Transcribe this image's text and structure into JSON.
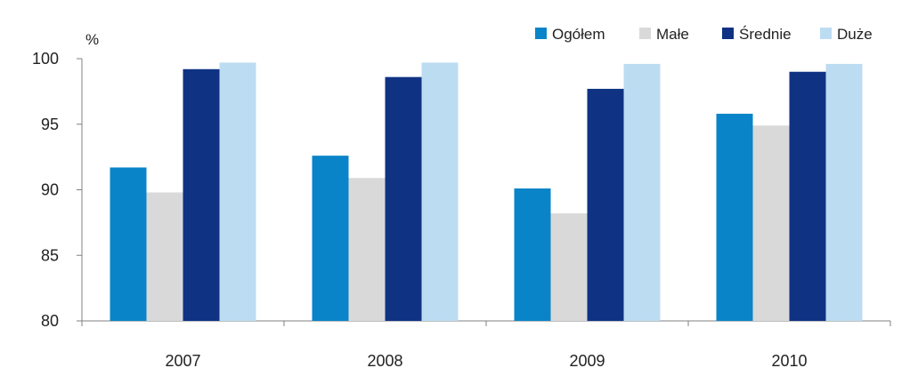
{
  "chart_data": {
    "type": "bar",
    "title": "",
    "unit_label": "%",
    "xlabel": "",
    "ylabel": "",
    "categories": [
      "2007",
      "2008",
      "2009",
      "2010"
    ],
    "series": [
      {
        "name": "Ogółem",
        "color": "#0a84c8",
        "values": [
          91.7,
          92.6,
          90.1,
          95.8
        ]
      },
      {
        "name": "Małe",
        "color": "#d9d9d9",
        "values": [
          89.8,
          90.9,
          88.2,
          94.9
        ]
      },
      {
        "name": "Średnie",
        "color": "#0f3283",
        "values": [
          99.2,
          98.6,
          97.7,
          99.0
        ]
      },
      {
        "name": "Duże",
        "color": "#bcdcf2",
        "values": [
          99.7,
          99.7,
          99.6,
          99.6
        ]
      }
    ],
    "ylim": [
      80,
      100
    ],
    "yticks": [
      80,
      85,
      90,
      95,
      100
    ],
    "grid": false,
    "legend_position": "top-right"
  }
}
